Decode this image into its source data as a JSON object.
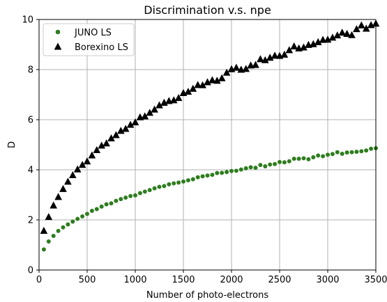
{
  "chart_data": {
    "type": "scatter",
    "title": "Discrimination v.s. npe",
    "xlabel": "Number of photo-electrons",
    "ylabel": "D",
    "xlim": [
      0,
      3500
    ],
    "ylim": [
      0,
      10
    ],
    "xticks": [
      0,
      500,
      1000,
      1500,
      2000,
      2500,
      3000,
      3500
    ],
    "yticks": [
      0,
      2,
      4,
      6,
      8,
      10
    ],
    "grid": true,
    "legend_position": "top-left",
    "series": [
      {
        "name": "JUNO LS",
        "color": "#2e7d1e",
        "marker": "circle",
        "x": [
          50,
          100,
          150,
          200,
          250,
          300,
          350,
          400,
          450,
          500,
          550,
          600,
          650,
          700,
          750,
          800,
          850,
          900,
          950,
          1000,
          1050,
          1100,
          1150,
          1200,
          1250,
          1300,
          1350,
          1400,
          1450,
          1500,
          1550,
          1600,
          1650,
          1700,
          1750,
          1800,
          1850,
          1900,
          1950,
          2000,
          2050,
          2100,
          2150,
          2200,
          2250,
          2300,
          2350,
          2400,
          2450,
          2500,
          2550,
          2600,
          2650,
          2700,
          2750,
          2800,
          2850,
          2900,
          2950,
          3000,
          3050,
          3100,
          3150,
          3200,
          3250,
          3300,
          3350,
          3400,
          3450,
          3500
        ],
        "y": [
          0.82,
          1.14,
          1.36,
          1.56,
          1.7,
          1.82,
          1.93,
          2.04,
          2.14,
          2.24,
          2.36,
          2.43,
          2.53,
          2.62,
          2.66,
          2.76,
          2.83,
          2.89,
          2.95,
          2.98,
          3.07,
          3.13,
          3.19,
          3.26,
          3.32,
          3.35,
          3.42,
          3.46,
          3.49,
          3.53,
          3.58,
          3.62,
          3.7,
          3.74,
          3.77,
          3.8,
          3.87,
          3.88,
          3.91,
          3.95,
          3.96,
          4.01,
          4.06,
          4.1,
          4.08,
          4.19,
          4.14,
          4.21,
          4.23,
          4.31,
          4.3,
          4.34,
          4.44,
          4.44,
          4.46,
          4.42,
          4.5,
          4.57,
          4.54,
          4.6,
          4.63,
          4.7,
          4.64,
          4.69,
          4.7,
          4.72,
          4.74,
          4.77,
          4.84,
          4.86
        ]
      },
      {
        "name": "Borexino LS",
        "color": "#000000",
        "marker": "triangle",
        "x": [
          50,
          100,
          150,
          200,
          250,
          300,
          350,
          400,
          450,
          500,
          550,
          600,
          650,
          700,
          750,
          800,
          850,
          900,
          950,
          1000,
          1050,
          1100,
          1150,
          1200,
          1250,
          1300,
          1350,
          1400,
          1450,
          1500,
          1550,
          1600,
          1650,
          1700,
          1750,
          1800,
          1850,
          1900,
          1950,
          2000,
          2050,
          2100,
          2150,
          2200,
          2250,
          2300,
          2350,
          2400,
          2450,
          2500,
          2550,
          2600,
          2650,
          2700,
          2750,
          2800,
          2850,
          2900,
          2950,
          3000,
          3050,
          3100,
          3150,
          3200,
          3250,
          3300,
          3350,
          3400,
          3450,
          3500
        ],
        "y": [
          1.57,
          2.12,
          2.58,
          2.92,
          3.24,
          3.53,
          3.79,
          4.02,
          4.2,
          4.34,
          4.58,
          4.79,
          4.97,
          5.06,
          5.26,
          5.39,
          5.56,
          5.64,
          5.8,
          5.9,
          6.1,
          6.14,
          6.28,
          6.41,
          6.58,
          6.68,
          6.75,
          6.78,
          6.87,
          7.07,
          7.12,
          7.24,
          7.39,
          7.38,
          7.5,
          7.58,
          7.56,
          7.66,
          7.88,
          8.02,
          8.08,
          8.0,
          8.03,
          8.17,
          8.19,
          8.42,
          8.38,
          8.48,
          8.56,
          8.55,
          8.6,
          8.78,
          8.93,
          8.85,
          8.89,
          8.99,
          9.02,
          9.1,
          9.19,
          9.2,
          9.28,
          9.37,
          9.48,
          9.43,
          9.38,
          9.62,
          9.77,
          9.64,
          9.78,
          9.84
        ]
      }
    ]
  }
}
